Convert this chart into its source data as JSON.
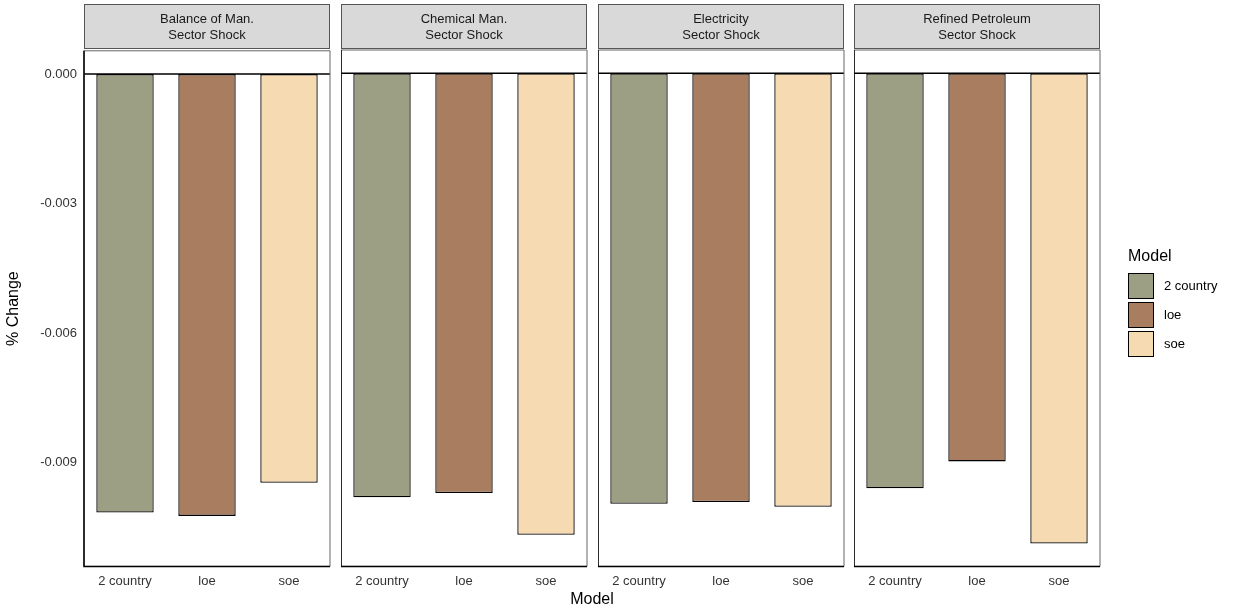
{
  "chart_data": [
    {
      "type": "bar",
      "title": "Balance of Man.\nSector Shock",
      "ylabel": "% Change",
      "categories": [
        "2 country",
        "loe",
        "soe"
      ],
      "series": [
        {
          "color": "#9d9f84",
          "values": [
            -0.01016,
            null,
            null
          ]
        },
        {
          "color": "#a97d5f",
          "values": [
            null,
            -0.01024,
            null
          ]
        },
        {
          "color": "#f6dab1",
          "values": [
            null,
            null,
            -0.00947
          ]
        }
      ],
      "ylim": [
        -0.01141,
        0.00054
      ],
      "yticks": [
        {
          "value": 0,
          "label": "0.000"
        },
        -0.003,
        -0.006,
        -0.009
      ],
      "ref_lines": [
        {
          "axis": "y",
          "value": 0
        }
      ]
    },
    {
      "type": "bar",
      "title": "Chemical Man.\nSector Shock",
      "xlabel": "Model",
      "categories": [
        "2 country",
        "loe",
        "soe"
      ],
      "series": [
        {
          "color": "#9d9f84",
          "values": [
            -0.00981,
            null,
            null
          ]
        },
        {
          "color": "#a97d5f",
          "values": [
            null,
            -0.00971,
            null
          ]
        },
        {
          "color": "#f6dab1",
          "values": [
            null,
            null,
            -0.01068
          ]
        }
      ],
      "ylim": [
        -0.01141,
        0.00054
      ],
      "tick_labels": "x",
      "ref_lines": [
        {
          "axis": "y",
          "value": 0
        }
      ]
    },
    {
      "type": "bar",
      "title": "Electricity\nSector Shock",
      "categories": [
        "2 country",
        "loe",
        "soe"
      ],
      "series": [
        {
          "color": "#9d9f84",
          "values": [
            -0.00996,
            null,
            null
          ]
        },
        {
          "color": "#a97d5f",
          "values": [
            null,
            -0.00992,
            null
          ]
        },
        {
          "color": "#f6dab1",
          "values": [
            null,
            null,
            -0.01003
          ]
        }
      ],
      "ylim": [
        -0.01141,
        0.00054
      ],
      "tick_labels": "x",
      "ref_lines": [
        {
          "axis": "y",
          "value": 0
        }
      ]
    },
    {
      "type": "bar",
      "title": "Refined Petroleum\nSector Shock",
      "categories": [
        "2 country",
        "loe",
        "soe"
      ],
      "series": [
        {
          "name": "2 country",
          "color": "#9d9f84",
          "values": [
            -0.0096,
            null,
            null
          ]
        },
        {
          "name": "loe",
          "color": "#a97d5f",
          "values": [
            null,
            -0.00898,
            null
          ]
        },
        {
          "name": "soe",
          "color": "#f6dab1",
          "values": [
            null,
            null,
            -0.01088
          ]
        }
      ],
      "ylim": [
        -0.01141,
        0.00054
      ],
      "tick_labels": "x",
      "ref_lines": [
        {
          "axis": "y",
          "value": 0
        }
      ],
      "legend": "right",
      "legend_title": "Model"
    }
  ]
}
